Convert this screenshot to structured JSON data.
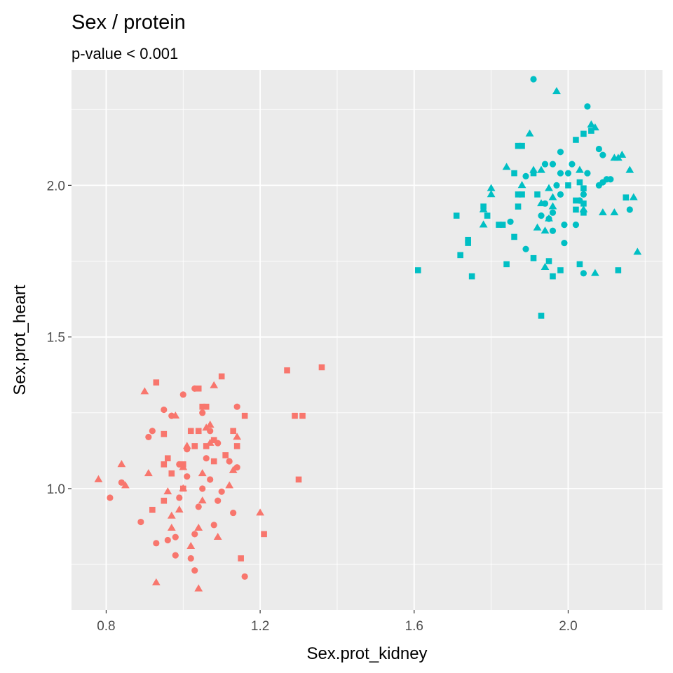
{
  "chart_data": {
    "type": "scatter",
    "title": "Sex / protein",
    "subtitle": "p-value < 0.001",
    "xlabel": "Sex.prot_kidney",
    "ylabel": "Sex.prot_heart",
    "xlim": [
      0.71,
      2.245
    ],
    "ylim": [
      0.6,
      2.38
    ],
    "x_ticks": [
      {
        "value": 0.8,
        "label": "0.8"
      },
      {
        "value": 1.2,
        "label": "1.2"
      },
      {
        "value": 1.6,
        "label": "1.6"
      },
      {
        "value": 2.0,
        "label": "2.0"
      }
    ],
    "y_ticks": [
      {
        "value": 1.0,
        "label": "1.0"
      },
      {
        "value": 1.5,
        "label": "1.5"
      },
      {
        "value": 2.0,
        "label": "2.0"
      }
    ],
    "x_minor": [
      1.0,
      1.4,
      1.8,
      2.2
    ],
    "y_minor": [
      0.75,
      1.25,
      1.75,
      2.25
    ],
    "grid": true,
    "panel_background": "#ebebeb",
    "legend": "none",
    "series": [
      {
        "color": "#f8766d",
        "shape": "circle",
        "points": [
          [
            0.81,
            0.97
          ],
          [
            0.84,
            1.02
          ],
          [
            0.89,
            0.89
          ],
          [
            0.91,
            1.17
          ],
          [
            0.92,
            1.19
          ],
          [
            0.93,
            0.82
          ],
          [
            0.95,
            1.26
          ],
          [
            0.96,
            0.83
          ],
          [
            0.97,
            1.24
          ],
          [
            0.98,
            0.78
          ],
          [
            0.98,
            0.84
          ],
          [
            0.99,
            0.97
          ],
          [
            1.0,
            1.31
          ],
          [
            1.01,
            1.04
          ],
          [
            1.01,
            1.13
          ],
          [
            1.02,
            0.77
          ],
          [
            1.03,
            0.73
          ],
          [
            1.03,
            0.85
          ],
          [
            1.04,
            0.94
          ],
          [
            1.05,
            1.0
          ],
          [
            1.06,
            1.1
          ],
          [
            1.07,
            1.19
          ],
          [
            1.08,
            0.88
          ],
          [
            1.09,
            1.15
          ],
          [
            1.1,
            0.99
          ],
          [
            1.12,
            1.09
          ],
          [
            1.13,
            0.92
          ],
          [
            1.14,
            1.27
          ],
          [
            1.16,
            0.71
          ],
          [
            1.05,
            1.25
          ],
          [
            1.03,
            1.33
          ],
          [
            0.99,
            1.08
          ],
          [
            1.07,
            1.03
          ],
          [
            1.14,
            1.07
          ],
          [
            1.09,
            0.96
          ]
        ]
      },
      {
        "color": "#f8766d",
        "shape": "triangle",
        "points": [
          [
            0.78,
            1.03
          ],
          [
            0.84,
            1.08
          ],
          [
            0.85,
            1.01
          ],
          [
            0.9,
            1.32
          ],
          [
            0.91,
            1.05
          ],
          [
            0.93,
            0.69
          ],
          [
            0.96,
            0.99
          ],
          [
            0.97,
            0.87
          ],
          [
            0.97,
            0.91
          ],
          [
            0.98,
            1.24
          ],
          [
            0.99,
            0.93
          ],
          [
            1.0,
            1.0
          ],
          [
            1.0,
            1.07
          ],
          [
            1.01,
            1.14
          ],
          [
            1.02,
            0.81
          ],
          [
            1.04,
            0.67
          ],
          [
            1.04,
            0.87
          ],
          [
            1.05,
            1.05
          ],
          [
            1.06,
            1.2
          ],
          [
            1.07,
            1.21
          ],
          [
            1.07,
            1.15
          ],
          [
            1.08,
            1.34
          ],
          [
            1.09,
            0.84
          ],
          [
            1.12,
            1.01
          ],
          [
            1.13,
            1.06
          ],
          [
            1.14,
            1.17
          ],
          [
            1.2,
            0.92
          ],
          [
            1.05,
            0.96
          ]
        ]
      },
      {
        "color": "#f8766d",
        "shape": "square",
        "points": [
          [
            0.92,
            0.93
          ],
          [
            0.93,
            1.35
          ],
          [
            0.95,
            1.18
          ],
          [
            0.95,
            0.96
          ],
          [
            0.95,
            1.08
          ],
          [
            0.96,
            1.1
          ],
          [
            0.97,
            1.05
          ],
          [
            1.0,
            1.0
          ],
          [
            1.0,
            1.08
          ],
          [
            1.02,
            1.19
          ],
          [
            1.03,
            1.14
          ],
          [
            1.04,
            1.33
          ],
          [
            1.05,
            1.27
          ],
          [
            1.06,
            1.27
          ],
          [
            1.06,
            1.14
          ],
          [
            1.08,
            1.16
          ],
          [
            1.08,
            1.09
          ],
          [
            1.1,
            1.37
          ],
          [
            1.11,
            1.11
          ],
          [
            1.13,
            1.19
          ],
          [
            1.14,
            1.14
          ],
          [
            1.15,
            0.77
          ],
          [
            1.16,
            1.24
          ],
          [
            1.21,
            0.85
          ],
          [
            1.27,
            1.39
          ],
          [
            1.29,
            1.24
          ],
          [
            1.3,
            1.03
          ],
          [
            1.31,
            1.24
          ],
          [
            1.36,
            1.4
          ],
          [
            1.04,
            1.19
          ]
        ]
      },
      {
        "color": "#00bfc4",
        "shape": "circle",
        "points": [
          [
            1.91,
            2.35
          ],
          [
            2.05,
            2.26
          ],
          [
            1.98,
            2.11
          ],
          [
            2.08,
            2.12
          ],
          [
            2.09,
            2.1
          ],
          [
            1.94,
            2.07
          ],
          [
            1.96,
            2.07
          ],
          [
            2.01,
            2.07
          ],
          [
            1.98,
            2.04
          ],
          [
            2.0,
            2.04
          ],
          [
            2.05,
            2.04
          ],
          [
            1.89,
            2.03
          ],
          [
            2.1,
            2.02
          ],
          [
            2.08,
            2.0
          ],
          [
            2.09,
            2.01
          ],
          [
            1.97,
            2.0
          ],
          [
            2.11,
            2.02
          ],
          [
            1.98,
            1.97
          ],
          [
            2.04,
            1.97
          ],
          [
            2.03,
            1.95
          ],
          [
            1.94,
            1.94
          ],
          [
            1.93,
            1.9
          ],
          [
            2.16,
            1.92
          ],
          [
            1.85,
            1.88
          ],
          [
            1.95,
            1.89
          ],
          [
            1.99,
            1.87
          ],
          [
            1.96,
            1.85
          ],
          [
            1.99,
            1.81
          ],
          [
            1.89,
            1.79
          ],
          [
            2.04,
            1.71
          ],
          [
            2.02,
            1.87
          ],
          [
            1.96,
            1.91
          ]
        ]
      },
      {
        "color": "#00bfc4",
        "shape": "triangle",
        "points": [
          [
            1.97,
            2.31
          ],
          [
            2.06,
            2.2
          ],
          [
            2.07,
            2.19
          ],
          [
            1.9,
            2.17
          ],
          [
            1.91,
            2.05
          ],
          [
            1.93,
            2.05
          ],
          [
            2.13,
            2.09
          ],
          [
            2.12,
            2.09
          ],
          [
            2.14,
            2.1
          ],
          [
            2.03,
            2.05
          ],
          [
            1.84,
            2.06
          ],
          [
            1.88,
            2.0
          ],
          [
            1.95,
            1.99
          ],
          [
            1.96,
            1.96
          ],
          [
            2.16,
            2.05
          ],
          [
            1.96,
            1.93
          ],
          [
            2.04,
            1.92
          ],
          [
            1.8,
            1.97
          ],
          [
            1.8,
            1.99
          ],
          [
            2.17,
            1.96
          ],
          [
            1.78,
            1.92
          ],
          [
            1.93,
            1.94
          ],
          [
            2.09,
            1.91
          ],
          [
            2.12,
            1.91
          ],
          [
            1.78,
            1.87
          ],
          [
            1.94,
            1.85
          ],
          [
            1.92,
            1.86
          ],
          [
            1.95,
            1.89
          ],
          [
            2.18,
            1.78
          ],
          [
            1.94,
            1.73
          ],
          [
            2.07,
            1.71
          ]
        ]
      },
      {
        "color": "#00bfc4",
        "shape": "square",
        "points": [
          [
            2.04,
            2.17
          ],
          [
            2.06,
            2.18
          ],
          [
            2.02,
            2.15
          ],
          [
            1.87,
            2.13
          ],
          [
            1.88,
            2.13
          ],
          [
            1.86,
            2.04
          ],
          [
            1.91,
            2.04
          ],
          [
            2.03,
            2.01
          ],
          [
            2.0,
            2.0
          ],
          [
            2.04,
            1.99
          ],
          [
            1.87,
            1.97
          ],
          [
            1.88,
            1.97
          ],
          [
            1.92,
            1.97
          ],
          [
            2.02,
            1.95
          ],
          [
            2.04,
            1.94
          ],
          [
            2.15,
            1.96
          ],
          [
            2.04,
            1.91
          ],
          [
            2.02,
            1.92
          ],
          [
            1.78,
            1.93
          ],
          [
            1.87,
            1.93
          ],
          [
            1.71,
            1.9
          ],
          [
            1.79,
            1.9
          ],
          [
            1.82,
            1.87
          ],
          [
            1.83,
            1.87
          ],
          [
            1.74,
            1.82
          ],
          [
            1.74,
            1.81
          ],
          [
            1.86,
            1.83
          ],
          [
            1.72,
            1.77
          ],
          [
            1.91,
            1.76
          ],
          [
            1.84,
            1.74
          ],
          [
            1.95,
            1.75
          ],
          [
            2.03,
            1.74
          ],
          [
            1.98,
            1.72
          ],
          [
            2.13,
            1.72
          ],
          [
            1.61,
            1.72
          ],
          [
            1.75,
            1.7
          ],
          [
            1.96,
            1.7
          ],
          [
            1.93,
            1.57
          ]
        ]
      }
    ]
  }
}
